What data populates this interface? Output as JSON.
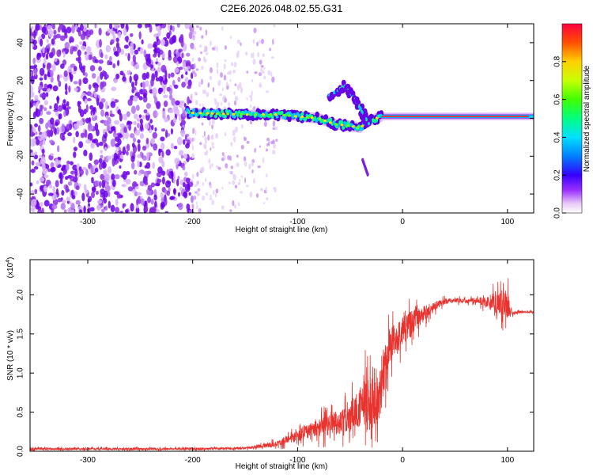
{
  "title": "C2E6.2026.048.02.55.G31",
  "chart_data": [
    {
      "type": "heatmap",
      "xlabel": "Height of straight line (km)",
      "ylabel": "Frequency (Hz)",
      "xlim": [
        -355,
        125
      ],
      "ylim": [
        -50,
        50
      ],
      "xticks": [
        -300,
        -200,
        -100,
        0,
        100
      ],
      "yticks": [
        -40,
        -20,
        0,
        20,
        40
      ],
      "colorbar": {
        "label": "Normalized spectral amplitude",
        "range": [
          0,
          1
        ],
        "ticks": [
          "0.0",
          "0.2",
          "0.4",
          "0.6",
          "0.8"
        ]
      },
      "features": [
        {
          "name": "noise",
          "x_range": [
            -355,
            -200
          ],
          "y_range": [
            -50,
            50
          ]
        },
        {
          "name": "sparse-noise",
          "x_range": [
            -200,
            -120
          ],
          "y_range": [
            -50,
            50
          ]
        },
        {
          "name": "carrier-line",
          "points": [
            [
              -205,
              3
            ],
            [
              -150,
              2
            ],
            [
              -120,
              2
            ],
            [
              -100,
              1
            ],
            [
              -80,
              0
            ],
            [
              -65,
              -3
            ],
            [
              -50,
              -4
            ],
            [
              -40,
              -5
            ],
            [
              -35,
              -2
            ],
            [
              -20,
              1
            ],
            [
              0,
              1
            ],
            [
              50,
              1
            ],
            [
              125,
              1
            ]
          ]
        },
        {
          "name": "branch",
          "points": [
            [
              -70,
              12
            ],
            [
              -55,
              17
            ],
            [
              -45,
              10
            ],
            [
              -37,
              2
            ],
            [
              -32,
              -3
            ]
          ]
        },
        {
          "name": "tail",
          "points": [
            [
              -38,
              -22
            ],
            [
              -33,
              -30
            ]
          ]
        }
      ]
    },
    {
      "type": "line",
      "xlabel": "Height of straight line (km)",
      "ylabel": "SNR (10 * v/v)",
      "yscale_label": "(x10",
      "yscale_exp": "4",
      "ytick_labels": [
        "0.0",
        "0.5",
        "1.0",
        "1.5",
        "2.0"
      ],
      "xlim": [
        -355,
        125
      ],
      "ylim": [
        0,
        24500
      ],
      "xticks": [
        -300,
        -200,
        -100,
        0,
        100
      ],
      "yticks": [
        0,
        5000,
        10000,
        15000,
        20000
      ],
      "color": "#e8332f",
      "series": [
        {
          "x": [
            -355,
            -300,
            -250,
            -200,
            -150,
            -120,
            -100,
            -80,
            -60,
            -45,
            -35,
            -25,
            -15,
            -10,
            0,
            10,
            20,
            30,
            40,
            50,
            60,
            70,
            80,
            90,
            100,
            105,
            110,
            125
          ],
          "y": [
            300,
            300,
            300,
            300,
            400,
            900,
            2000,
            3000,
            3600,
            5000,
            6500,
            5500,
            12000,
            14000,
            15500,
            16500,
            17500,
            18500,
            19200,
            19300,
            19200,
            19300,
            19100,
            19000,
            18800,
            17600,
            17800,
            17800
          ],
          "spread": [
            300,
            300,
            300,
            300,
            300,
            800,
            1500,
            2500,
            3200,
            4500,
            7000,
            8000,
            6000,
            4500,
            4000,
            3500,
            2500,
            1200,
            800,
            600,
            600,
            800,
            1500,
            3500,
            4000,
            500,
            300,
            300
          ]
        }
      ]
    }
  ]
}
